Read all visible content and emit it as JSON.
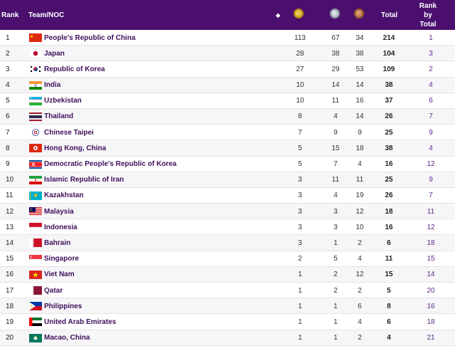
{
  "header": {
    "rank": "Rank",
    "team": "Team/NOC",
    "sort_icon": "◆",
    "total": "Total",
    "rank_by_total": "Rank by Total",
    "medal_icons": [
      "gold-medal-icon",
      "silver-medal-icon",
      "bronze-medal-icon"
    ]
  },
  "colors": {
    "header_bg": "#4b0f6d",
    "team_text": "#3e0f5a",
    "rank_total_text": "#5c2a8a"
  },
  "rows": [
    {
      "rank": "1",
      "flag": "china",
      "name": "People's Republic of China",
      "gold": "113",
      "silver": "67",
      "bronze": "34",
      "total": "214",
      "rbt": "1"
    },
    {
      "rank": "2",
      "flag": "japan",
      "name": "Japan",
      "gold": "28",
      "silver": "38",
      "bronze": "38",
      "total": "104",
      "rbt": "3"
    },
    {
      "rank": "3",
      "flag": "korea",
      "name": "Republic of Korea",
      "gold": "27",
      "silver": "29",
      "bronze": "53",
      "total": "109",
      "rbt": "2"
    },
    {
      "rank": "4",
      "flag": "india",
      "name": "India",
      "gold": "10",
      "silver": "14",
      "bronze": "14",
      "total": "38",
      "rbt": "4"
    },
    {
      "rank": "5",
      "flag": "uzbekistan",
      "name": "Uzbekistan",
      "gold": "10",
      "silver": "11",
      "bronze": "16",
      "total": "37",
      "rbt": "6"
    },
    {
      "rank": "6",
      "flag": "thailand",
      "name": "Thailand",
      "gold": "8",
      "silver": "4",
      "bronze": "14",
      "total": "26",
      "rbt": "7"
    },
    {
      "rank": "7",
      "flag": "chinese-taipei",
      "name": "Chinese Taipei",
      "gold": "7",
      "silver": "9",
      "bronze": "9",
      "total": "25",
      "rbt": "9"
    },
    {
      "rank": "8",
      "flag": "hong-kong",
      "name": "Hong Kong, China",
      "gold": "5",
      "silver": "15",
      "bronze": "18",
      "total": "38",
      "rbt": "4"
    },
    {
      "rank": "9",
      "flag": "dprk",
      "name": "Democratic People's Republic of Korea",
      "gold": "5",
      "silver": "7",
      "bronze": "4",
      "total": "16",
      "rbt": "12"
    },
    {
      "rank": "10",
      "flag": "iran",
      "name": "Islamic Republic of Iran",
      "gold": "3",
      "silver": "11",
      "bronze": "11",
      "total": "25",
      "rbt": "9"
    },
    {
      "rank": "11",
      "flag": "kazakhstan",
      "name": "Kazakhstan",
      "gold": "3",
      "silver": "4",
      "bronze": "19",
      "total": "26",
      "rbt": "7"
    },
    {
      "rank": "12",
      "flag": "malaysia",
      "name": "Malaysia",
      "gold": "3",
      "silver": "3",
      "bronze": "12",
      "total": "18",
      "rbt": "11"
    },
    {
      "rank": "13",
      "flag": "indonesia",
      "name": "Indonesia",
      "gold": "3",
      "silver": "3",
      "bronze": "10",
      "total": "16",
      "rbt": "12"
    },
    {
      "rank": "14",
      "flag": "bahrain",
      "name": "Bahrain",
      "gold": "3",
      "silver": "1",
      "bronze": "2",
      "total": "6",
      "rbt": "18"
    },
    {
      "rank": "15",
      "flag": "singapore",
      "name": "Singapore",
      "gold": "2",
      "silver": "5",
      "bronze": "4",
      "total": "11",
      "rbt": "15"
    },
    {
      "rank": "16",
      "flag": "vietnam",
      "name": "Viet Nam",
      "gold": "1",
      "silver": "2",
      "bronze": "12",
      "total": "15",
      "rbt": "14"
    },
    {
      "rank": "17",
      "flag": "qatar",
      "name": "Qatar",
      "gold": "1",
      "silver": "2",
      "bronze": "2",
      "total": "5",
      "rbt": "20"
    },
    {
      "rank": "18",
      "flag": "philippines",
      "name": "Philippines",
      "gold": "1",
      "silver": "1",
      "bronze": "6",
      "total": "8",
      "rbt": "16"
    },
    {
      "rank": "19",
      "flag": "uae",
      "name": "United Arab Emirates",
      "gold": "1",
      "silver": "1",
      "bronze": "4",
      "total": "6",
      "rbt": "18"
    },
    {
      "rank": "20",
      "flag": "macao",
      "name": "Macao, China",
      "gold": "1",
      "silver": "1",
      "bronze": "2",
      "total": "4",
      "rbt": "21"
    }
  ]
}
